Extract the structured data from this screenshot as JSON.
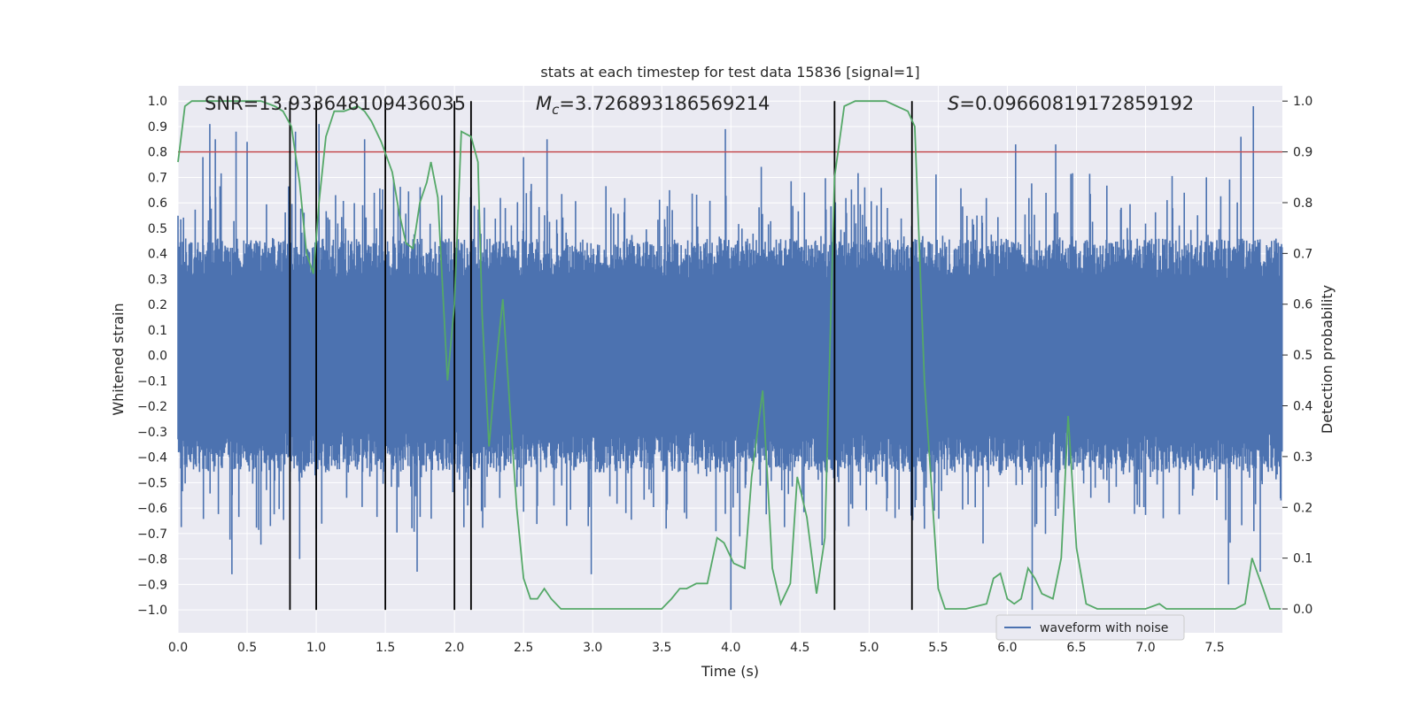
{
  "chart_data": {
    "type": "line",
    "title": "stats at each timestep for test data 15836 [signal=1]",
    "xlabel": "Time (s)",
    "ylabel": "Whitened strain",
    "y2label": "Detection probability",
    "xlim": [
      0.0,
      7.99
    ],
    "ylim": [
      -1.09,
      1.06
    ],
    "y2lim": [
      -0.047,
      1.03
    ],
    "xticks": [
      "0.0",
      "0.5",
      "1.0",
      "1.5",
      "2.0",
      "2.5",
      "3.0",
      "3.5",
      "4.0",
      "4.5",
      "5.0",
      "5.5",
      "6.0",
      "6.5",
      "7.0",
      "7.5"
    ],
    "yticks": [
      "1.0",
      "0.9",
      "0.8",
      "0.7",
      "0.6",
      "0.5",
      "0.4",
      "0.3",
      "0.2",
      "0.1",
      "0.0",
      "-0.1",
      "-0.2",
      "-0.3",
      "-0.4",
      "-0.5",
      "-0.6",
      "-0.7",
      "-0.8",
      "-0.9",
      "-1.0"
    ],
    "y2ticks": [
      "1.0",
      "0.9",
      "0.8",
      "0.7",
      "0.6",
      "0.5",
      "0.4",
      "0.3",
      "0.2",
      "0.1",
      "0.0"
    ],
    "annotations": {
      "snr": "SNR=13.933648109436035",
      "mc_symbol": "M",
      "mc_sub": "c",
      "mc_value": "=3.726893186569214",
      "s_symbol": "S",
      "s_value": "=0.09660819172859192"
    },
    "threshold": {
      "y2": 0.9,
      "color": "#c44e52"
    },
    "event_markers_x": [
      0.81,
      1.0,
      1.5,
      2.0,
      2.12,
      4.75,
      5.31
    ],
    "waveform": {
      "name": "waveform with noise",
      "color": "#4c72b0",
      "typical_envelope": 0.4,
      "peaks": [
        {
          "x": 0.18,
          "y": 0.78
        },
        {
          "x": 0.23,
          "y": 0.91
        },
        {
          "x": 0.27,
          "y": 0.85
        },
        {
          "x": 0.39,
          "y": -0.86
        },
        {
          "x": 0.42,
          "y": 0.88
        },
        {
          "x": 0.5,
          "y": 0.84
        },
        {
          "x": 0.85,
          "y": 0.88
        },
        {
          "x": 0.88,
          "y": -0.8
        },
        {
          "x": 1.02,
          "y": 0.91
        },
        {
          "x": 1.35,
          "y": 0.85
        },
        {
          "x": 1.73,
          "y": -0.85
        },
        {
          "x": 2.5,
          "y": 0.78
        },
        {
          "x": 2.67,
          "y": 0.85
        },
        {
          "x": 2.99,
          "y": -0.86
        },
        {
          "x": 3.96,
          "y": 0.89
        },
        {
          "x": 4.0,
          "y": -1.0
        },
        {
          "x": 6.06,
          "y": 0.83
        },
        {
          "x": 6.18,
          "y": -1.0
        },
        {
          "x": 6.35,
          "y": 0.83
        },
        {
          "x": 7.6,
          "y": -0.9
        },
        {
          "x": 7.69,
          "y": 0.86
        },
        {
          "x": 7.78,
          "y": 0.98
        },
        {
          "x": 7.83,
          "y": -0.85
        }
      ]
    },
    "probability": {
      "name": "detection probability",
      "color": "#55a868",
      "points": [
        [
          0.0,
          0.88
        ],
        [
          0.05,
          0.99
        ],
        [
          0.1,
          1.0
        ],
        [
          0.3,
          1.0
        ],
        [
          0.6,
          1.0
        ],
        [
          0.7,
          0.99
        ],
        [
          0.76,
          0.98
        ],
        [
          0.82,
          0.95
        ],
        [
          0.88,
          0.84
        ],
        [
          0.93,
          0.7
        ],
        [
          0.98,
          0.66
        ],
        [
          1.02,
          0.8
        ],
        [
          1.07,
          0.93
        ],
        [
          1.13,
          0.98
        ],
        [
          1.2,
          0.98
        ],
        [
          1.3,
          0.99
        ],
        [
          1.35,
          0.98
        ],
        [
          1.4,
          0.96
        ],
        [
          1.47,
          0.92
        ],
        [
          1.55,
          0.86
        ],
        [
          1.6,
          0.78
        ],
        [
          1.65,
          0.72
        ],
        [
          1.7,
          0.71
        ],
        [
          1.75,
          0.8
        ],
        [
          1.8,
          0.84
        ],
        [
          1.83,
          0.88
        ],
        [
          1.88,
          0.81
        ],
        [
          1.95,
          0.45
        ],
        [
          2.0,
          0.6
        ],
        [
          2.05,
          0.94
        ],
        [
          2.12,
          0.93
        ],
        [
          2.17,
          0.88
        ],
        [
          2.2,
          0.58
        ],
        [
          2.25,
          0.32
        ],
        [
          2.3,
          0.48
        ],
        [
          2.35,
          0.61
        ],
        [
          2.4,
          0.4
        ],
        [
          2.45,
          0.2
        ],
        [
          2.5,
          0.06
        ],
        [
          2.55,
          0.02
        ],
        [
          2.6,
          0.02
        ],
        [
          2.65,
          0.04
        ],
        [
          2.7,
          0.02
        ],
        [
          2.77,
          0.0
        ],
        [
          2.85,
          0.0
        ],
        [
          3.0,
          0.0
        ],
        [
          3.2,
          0.0
        ],
        [
          3.3,
          0.0
        ],
        [
          3.4,
          0.0
        ],
        [
          3.5,
          0.0
        ],
        [
          3.57,
          0.02
        ],
        [
          3.63,
          0.04
        ],
        [
          3.68,
          0.04
        ],
        [
          3.75,
          0.05
        ],
        [
          3.83,
          0.05
        ],
        [
          3.9,
          0.14
        ],
        [
          3.95,
          0.13
        ],
        [
          4.02,
          0.09
        ],
        [
          4.1,
          0.08
        ],
        [
          4.15,
          0.26
        ],
        [
          4.23,
          0.43
        ],
        [
          4.3,
          0.08
        ],
        [
          4.36,
          0.01
        ],
        [
          4.43,
          0.05
        ],
        [
          4.48,
          0.26
        ],
        [
          4.55,
          0.18
        ],
        [
          4.62,
          0.03
        ],
        [
          4.68,
          0.14
        ],
        [
          4.75,
          0.85
        ],
        [
          4.82,
          0.99
        ],
        [
          4.9,
          1.0
        ],
        [
          5.0,
          1.0
        ],
        [
          5.12,
          1.0
        ],
        [
          5.2,
          0.99
        ],
        [
          5.28,
          0.98
        ],
        [
          5.33,
          0.95
        ],
        [
          5.4,
          0.45
        ],
        [
          5.5,
          0.04
        ],
        [
          5.55,
          0.0
        ],
        [
          5.7,
          0.0
        ],
        [
          5.85,
          0.01
        ],
        [
          5.9,
          0.06
        ],
        [
          5.95,
          0.07
        ],
        [
          6.0,
          0.02
        ],
        [
          6.05,
          0.01
        ],
        [
          6.1,
          0.02
        ],
        [
          6.15,
          0.08
        ],
        [
          6.2,
          0.06
        ],
        [
          6.25,
          0.03
        ],
        [
          6.33,
          0.02
        ],
        [
          6.39,
          0.1
        ],
        [
          6.44,
          0.38
        ],
        [
          6.5,
          0.12
        ],
        [
          6.57,
          0.01
        ],
        [
          6.65,
          0.0
        ],
        [
          7.0,
          0.0
        ],
        [
          7.1,
          0.01
        ],
        [
          7.15,
          0.0
        ],
        [
          7.5,
          0.0
        ],
        [
          7.65,
          0.0
        ],
        [
          7.72,
          0.01
        ],
        [
          7.77,
          0.1
        ],
        [
          7.85,
          0.04
        ],
        [
          7.9,
          0.0
        ],
        [
          7.98,
          0.0
        ]
      ]
    },
    "legend": {
      "entries": [
        "waveform with noise"
      ],
      "location": "lower right"
    }
  }
}
